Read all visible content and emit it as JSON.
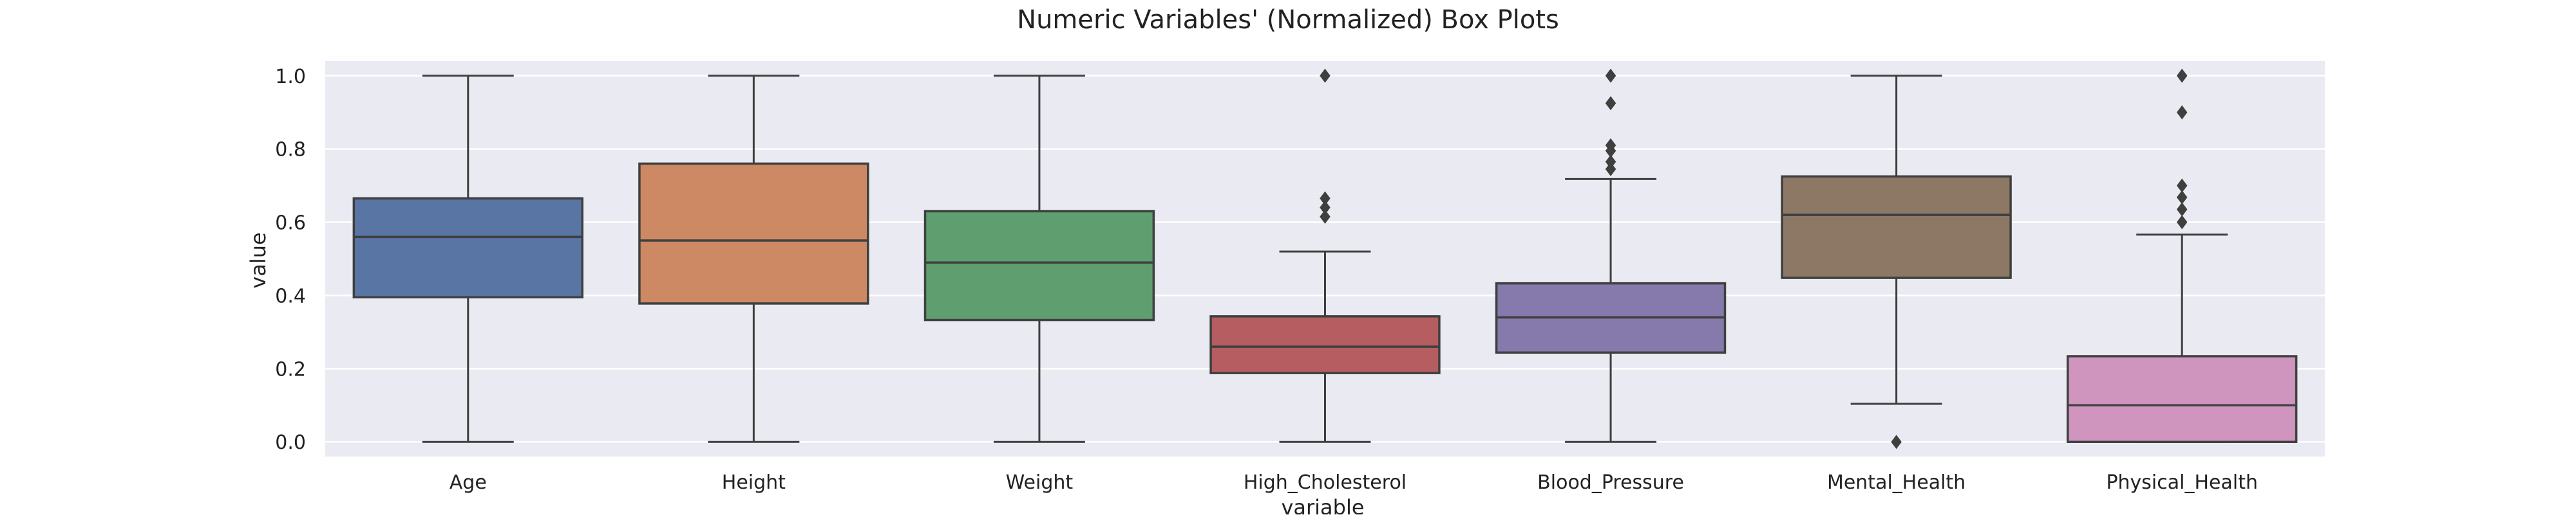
{
  "chart_data": {
    "type": "boxplot",
    "title": "Numeric Variables' (Normalized) Box Plots",
    "xlabel": "variable",
    "ylabel": "value",
    "ylim": [
      -0.04,
      1.04
    ],
    "yticks": [
      "0.0",
      "0.2",
      "0.4",
      "0.6",
      "0.8",
      "1.0"
    ],
    "grid": true,
    "categories": [
      "Age",
      "Height",
      "Weight",
      "High_Cholesterol",
      "Blood_Pressure",
      "Mental_Health",
      "Physical_Health"
    ],
    "boxes": [
      {
        "name": "Age",
        "whisker_low": 0.0,
        "q1": 0.395,
        "median": 0.56,
        "q3": 0.665,
        "whisker_high": 1.0,
        "outliers": [],
        "color": "#5875a4"
      },
      {
        "name": "Height",
        "whisker_low": 0.0,
        "q1": 0.378,
        "median": 0.55,
        "q3": 0.76,
        "whisker_high": 1.0,
        "outliers": [],
        "color": "#cc8963"
      },
      {
        "name": "Weight",
        "whisker_low": 0.0,
        "q1": 0.333,
        "median": 0.49,
        "q3": 0.63,
        "whisker_high": 1.0,
        "outliers": [],
        "color": "#5f9e6e"
      },
      {
        "name": "High_Cholesterol",
        "whisker_low": 0.0,
        "q1": 0.188,
        "median": 0.26,
        "q3": 0.343,
        "whisker_high": 0.52,
        "outliers": [
          0.615,
          0.64,
          0.665,
          1.0
        ],
        "color": "#b55d60"
      },
      {
        "name": "Blood_Pressure",
        "whisker_low": 0.0,
        "q1": 0.244,
        "median": 0.34,
        "q3": 0.433,
        "whisker_high": 0.718,
        "outliers": [
          0.745,
          0.765,
          0.795,
          0.81,
          0.925,
          1.0
        ],
        "color": "#857aab"
      },
      {
        "name": "Mental_Health",
        "whisker_low": 0.104,
        "q1": 0.448,
        "median": 0.62,
        "q3": 0.725,
        "whisker_high": 1.0,
        "outliers": [
          0.0
        ],
        "color": "#8d7866"
      },
      {
        "name": "Physical_Health",
        "whisker_low": 0.0,
        "q1": 0.0,
        "median": 0.1,
        "q3": 0.234,
        "whisker_high": 0.566,
        "outliers": [
          0.6,
          0.635,
          0.668,
          0.7,
          0.9,
          1.0
        ],
        "color": "#d095bf"
      }
    ],
    "colors": {
      "plot_background": "#eaeaf2",
      "gridline": "#ffffff",
      "box_edge": "#3f3f3f",
      "text": "#222222"
    }
  }
}
